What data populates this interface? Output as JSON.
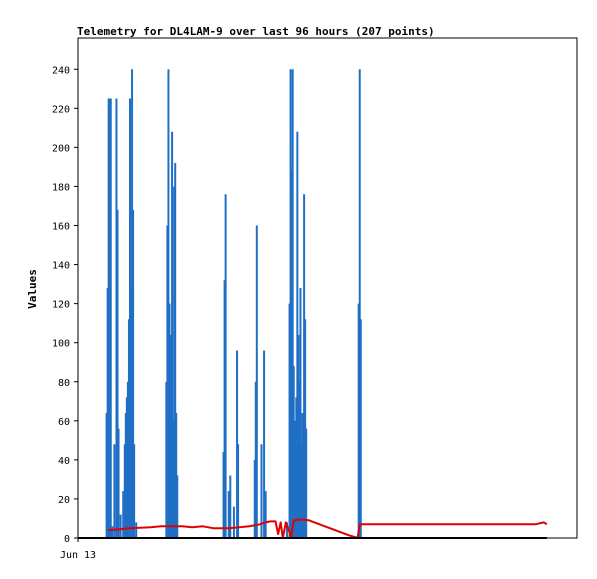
{
  "chart_data": {
    "type": "bar",
    "title": "Telemetry for DL4LAM-9 over last 96 hours (207 points)",
    "ylabel": "Values",
    "xlabel": "",
    "x_tick_labels": [
      {
        "label": "Jun 13",
        "hour": 0
      }
    ],
    "x_range_hours": [
      0,
      96
    ],
    "ylim": [
      0,
      256
    ],
    "yticks": [
      0,
      20,
      40,
      60,
      80,
      100,
      120,
      140,
      160,
      180,
      200,
      220,
      240
    ],
    "grid": false,
    "series": [
      {
        "kind": "bar",
        "color": "#1f6fc5",
        "points": [
          [
            5.5,
            64
          ],
          [
            5.7,
            128
          ],
          [
            5.9,
            225
          ],
          [
            6.1,
            225
          ],
          [
            6.3,
            225
          ],
          [
            6.6,
            6
          ],
          [
            7.0,
            48
          ],
          [
            7.4,
            225
          ],
          [
            7.6,
            168
          ],
          [
            7.8,
            56
          ],
          [
            8.2,
            12
          ],
          [
            8.7,
            24
          ],
          [
            9.0,
            48
          ],
          [
            9.2,
            64
          ],
          [
            9.4,
            72
          ],
          [
            9.6,
            80
          ],
          [
            9.8,
            112
          ],
          [
            10.0,
            225
          ],
          [
            10.2,
            128
          ],
          [
            10.4,
            240
          ],
          [
            10.6,
            168
          ],
          [
            10.8,
            48
          ],
          [
            11.2,
            8
          ],
          [
            17.0,
            80
          ],
          [
            17.2,
            160
          ],
          [
            17.4,
            240
          ],
          [
            17.6,
            120
          ],
          [
            17.9,
            104
          ],
          [
            18.1,
            208
          ],
          [
            18.3,
            60
          ],
          [
            18.5,
            180
          ],
          [
            18.7,
            192
          ],
          [
            18.9,
            64
          ],
          [
            19.1,
            32
          ],
          [
            28.0,
            44
          ],
          [
            28.2,
            132
          ],
          [
            28.4,
            176
          ],
          [
            29.0,
            24
          ],
          [
            29.3,
            32
          ],
          [
            30.0,
            16
          ],
          [
            30.6,
            96
          ],
          [
            30.8,
            48
          ],
          [
            34.0,
            40
          ],
          [
            34.2,
            80
          ],
          [
            34.4,
            160
          ],
          [
            35.3,
            48
          ],
          [
            35.8,
            96
          ],
          [
            36.1,
            24
          ],
          [
            40.2,
            8
          ],
          [
            40.7,
            120
          ],
          [
            40.9,
            240
          ],
          [
            41.1,
            188
          ],
          [
            41.3,
            240
          ],
          [
            41.5,
            88
          ],
          [
            41.8,
            60
          ],
          [
            42.0,
            72
          ],
          [
            42.2,
            208
          ],
          [
            42.4,
            104
          ],
          [
            42.6,
            80
          ],
          [
            42.8,
            128
          ],
          [
            43.0,
            48
          ],
          [
            43.2,
            64
          ],
          [
            43.5,
            176
          ],
          [
            43.7,
            112
          ],
          [
            43.9,
            56
          ],
          [
            54.0,
            120
          ],
          [
            54.2,
            240
          ],
          [
            54.4,
            112
          ]
        ]
      },
      {
        "kind": "line",
        "color": "#e00000",
        "points": [
          [
            5.8,
            4
          ],
          [
            8.0,
            4.5
          ],
          [
            10.0,
            5
          ],
          [
            14.0,
            5.5
          ],
          [
            16.0,
            6
          ],
          [
            20.0,
            6
          ],
          [
            22.0,
            5.5
          ],
          [
            24.0,
            6
          ],
          [
            26.0,
            5
          ],
          [
            28.0,
            5
          ],
          [
            29.0,
            5
          ],
          [
            31.0,
            5.5
          ],
          [
            33.0,
            6
          ],
          [
            35.0,
            7
          ],
          [
            36.0,
            8
          ],
          [
            37.0,
            8.5
          ],
          [
            38.0,
            8.5
          ],
          [
            38.5,
            2
          ],
          [
            39.0,
            8
          ],
          [
            39.4,
            0
          ],
          [
            40.0,
            8
          ],
          [
            41.0,
            0.5
          ],
          [
            41.5,
            9
          ],
          [
            43.0,
            9.5
          ],
          [
            44.5,
            9
          ],
          [
            46.0,
            7.5
          ],
          [
            48.0,
            5.5
          ],
          [
            50.0,
            3.5
          ],
          [
            52.0,
            1.5
          ],
          [
            53.8,
            0
          ],
          [
            54.2,
            7
          ],
          [
            60.0,
            7
          ],
          [
            70.0,
            7
          ],
          [
            80.0,
            7
          ],
          [
            88.0,
            7
          ],
          [
            89.6,
            8
          ],
          [
            90.2,
            7
          ]
        ]
      },
      {
        "kind": "line",
        "color": "#000000",
        "points": [
          [
            0,
            0
          ],
          [
            90.2,
            0
          ]
        ]
      }
    ]
  }
}
